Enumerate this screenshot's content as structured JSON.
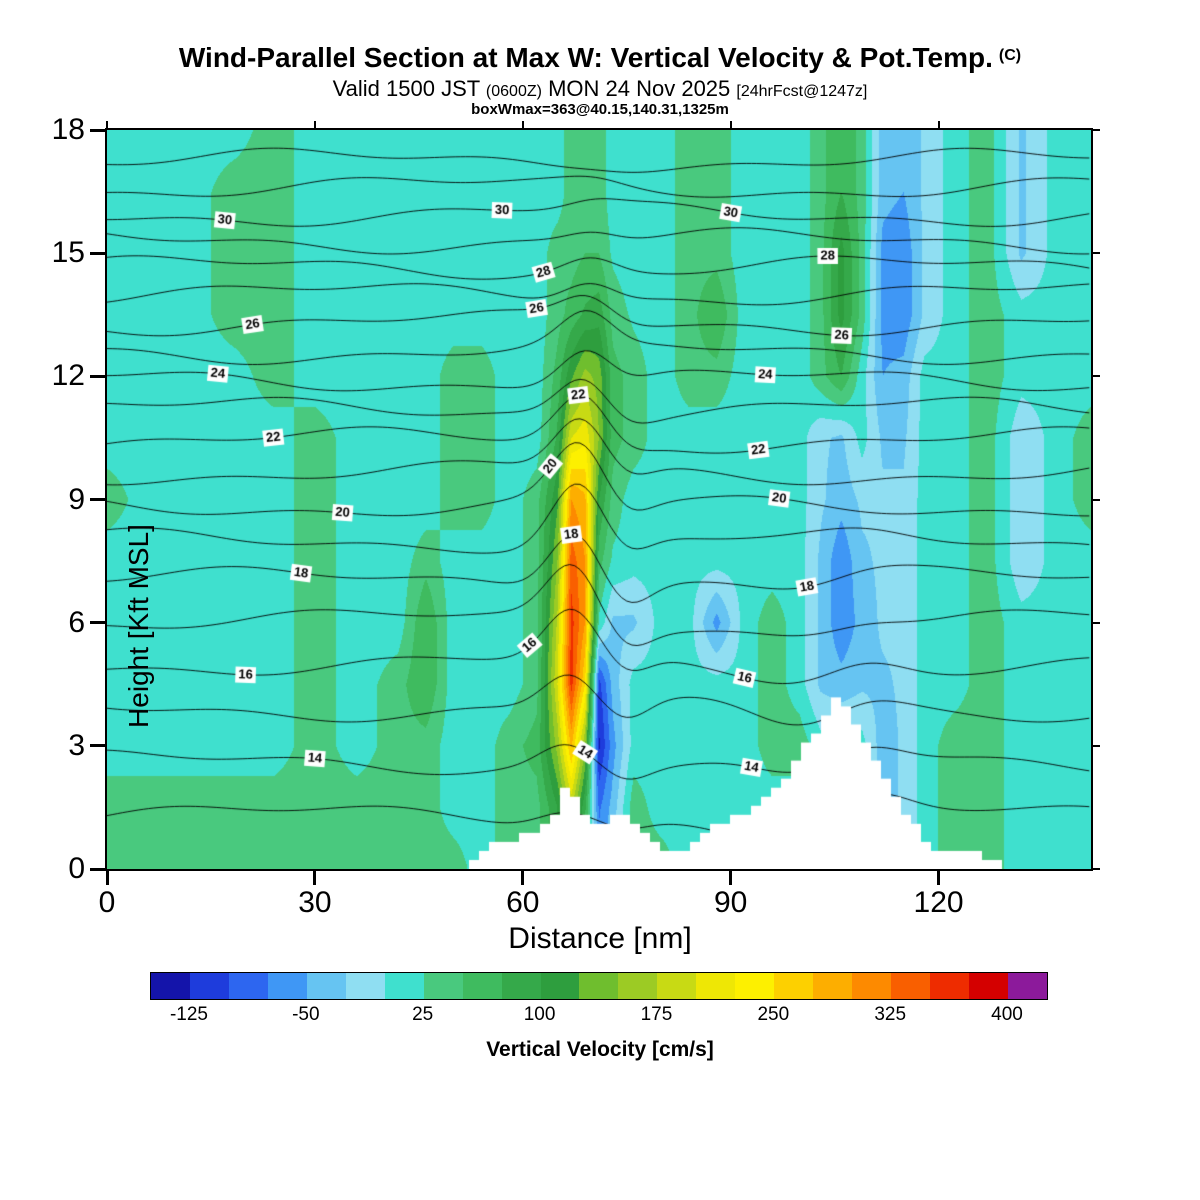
{
  "header": {
    "title_unit": "(C)",
    "valid": {
      "p1": "Valid 1500 JST",
      "p2": "(0600Z)",
      "p3": "MON 24 Nov 2025",
      "p4": "[24hrFcst@1247z]"
    },
    "max_line": "boxWmax=363@40.15,140.31,1325m"
  },
  "chart_data": {
    "type": "heatmap",
    "title": "Wind-Parallel Section at Max W: Vertical Velocity & Pot.Temp.",
    "subtitle": "Valid 1500 JST (0600Z) MON 24 Nov 2025 [24hrFcst@1247z]",
    "annotation": "boxWmax=363@40.15,140.31,1325m",
    "xlabel": "Distance [nm]",
    "ylabel": "Height [Kft MSL]",
    "xlim": [
      0,
      142
    ],
    "ylim": [
      0,
      18
    ],
    "x_ticks": [
      0,
      30,
      60,
      90,
      120
    ],
    "y_ticks": [
      0,
      3,
      6,
      9,
      12,
      15,
      18
    ],
    "field_name": "Vertical Velocity",
    "field_units": "cm/s",
    "max_value_cms": 363,
    "colorbar": {
      "title": "Vertical Velocity [cm/s]",
      "ticks": [
        -125,
        -50,
        25,
        100,
        175,
        250,
        325,
        400
      ],
      "vmin": -150,
      "vmax": 425,
      "bin_size": 25,
      "colors": [
        "#1414aa",
        "#1e3cdc",
        "#2d66f0",
        "#3f97f5",
        "#66c4f2",
        "#8fdef2",
        "#3fe0ce",
        "#49c97e",
        "#3fbb5f",
        "#35a94a",
        "#2e9e3e",
        "#6fbe2e",
        "#9ccb24",
        "#c8da14",
        "#eee705",
        "#fdf000",
        "#fdd000",
        "#fdae00",
        "#fd8a00",
        "#f95f00",
        "#ee2c00",
        "#d40000",
        "#8c1a9b"
      ]
    },
    "x_nm": [
      0,
      6,
      12,
      18,
      24,
      30,
      36,
      42,
      46,
      50,
      54,
      58,
      62,
      65,
      67,
      69,
      71,
      73,
      76,
      80,
      84,
      88,
      92,
      96,
      100,
      103,
      106,
      109,
      112,
      115,
      118,
      122,
      127,
      132,
      137,
      142
    ],
    "z_kft": [
      0,
      1.5,
      3,
      4.5,
      6,
      7.5,
      9,
      10.5,
      12,
      13.5,
      15,
      16.5,
      18
    ],
    "w_cms": [
      [
        40,
        40,
        40,
        40,
        40,
        40,
        40,
        40,
        40,
        40,
        10,
        40,
        40,
        100,
        150,
        60,
        -60,
        -20,
        40,
        40,
        10,
        10,
        10,
        10,
        10,
        10,
        10,
        10,
        -30,
        -20,
        10,
        40,
        40,
        10,
        10,
        10
      ],
      [
        40,
        40,
        40,
        40,
        40,
        40,
        40,
        40,
        40,
        10,
        10,
        40,
        40,
        100,
        180,
        80,
        -80,
        -40,
        40,
        10,
        10,
        10,
        10,
        10,
        10,
        10,
        10,
        10,
        -40,
        -20,
        10,
        40,
        40,
        10,
        10,
        10
      ],
      [
        10,
        10,
        10,
        10,
        10,
        40,
        10,
        40,
        40,
        10,
        10,
        40,
        60,
        160,
        280,
        150,
        -130,
        -60,
        10,
        10,
        10,
        10,
        10,
        40,
        40,
        10,
        10,
        10,
        -40,
        -20,
        10,
        40,
        40,
        10,
        10,
        10
      ],
      [
        10,
        10,
        10,
        10,
        10,
        40,
        10,
        40,
        75,
        10,
        10,
        10,
        40,
        200,
        360,
        250,
        -110,
        -40,
        10,
        10,
        10,
        10,
        10,
        40,
        10,
        -30,
        -40,
        -30,
        -30,
        -20,
        10,
        10,
        40,
        10,
        10,
        10
      ],
      [
        10,
        10,
        10,
        10,
        10,
        40,
        10,
        10,
        75,
        10,
        10,
        10,
        40,
        180,
        360,
        300,
        20,
        -30,
        -30,
        10,
        10,
        -60,
        10,
        40,
        10,
        -30,
        -70,
        -40,
        -20,
        -20,
        10,
        10,
        40,
        10,
        10,
        10
      ],
      [
        10,
        10,
        10,
        10,
        10,
        40,
        10,
        10,
        40,
        10,
        10,
        10,
        40,
        150,
        340,
        300,
        60,
        20,
        10,
        10,
        10,
        10,
        10,
        10,
        10,
        -30,
        -70,
        -30,
        -20,
        -20,
        10,
        10,
        40,
        -20,
        10,
        10
      ],
      [
        40,
        10,
        10,
        10,
        10,
        40,
        10,
        10,
        10,
        40,
        40,
        10,
        40,
        120,
        300,
        280,
        100,
        40,
        10,
        10,
        10,
        10,
        10,
        10,
        10,
        -20,
        -40,
        -20,
        -20,
        -20,
        10,
        10,
        40,
        -20,
        10,
        40
      ],
      [
        10,
        10,
        10,
        10,
        10,
        40,
        10,
        10,
        10,
        40,
        40,
        10,
        10,
        80,
        200,
        220,
        150,
        60,
        40,
        10,
        10,
        10,
        10,
        10,
        10,
        -20,
        -30,
        10,
        -30,
        -30,
        10,
        10,
        40,
        -20,
        10,
        40
      ],
      [
        10,
        10,
        10,
        10,
        40,
        10,
        10,
        10,
        10,
        40,
        40,
        10,
        10,
        60,
        120,
        160,
        140,
        60,
        40,
        10,
        40,
        40,
        10,
        10,
        10,
        40,
        75,
        10,
        -50,
        -40,
        10,
        10,
        40,
        10,
        10,
        10
      ],
      [
        10,
        10,
        10,
        40,
        40,
        10,
        10,
        10,
        10,
        10,
        10,
        10,
        10,
        40,
        60,
        80,
        90,
        40,
        20,
        10,
        40,
        75,
        10,
        10,
        10,
        40,
        110,
        40,
        -60,
        -70,
        -20,
        10,
        40,
        10,
        10,
        10
      ],
      [
        10,
        10,
        10,
        40,
        40,
        10,
        10,
        10,
        10,
        10,
        10,
        10,
        10,
        40,
        40,
        50,
        50,
        20,
        10,
        10,
        40,
        40,
        10,
        10,
        10,
        40,
        110,
        40,
        -60,
        -70,
        -20,
        10,
        40,
        -30,
        10,
        10
      ],
      [
        10,
        10,
        10,
        40,
        40,
        10,
        10,
        10,
        10,
        10,
        10,
        10,
        10,
        10,
        40,
        40,
        40,
        10,
        10,
        10,
        40,
        40,
        10,
        10,
        10,
        40,
        75,
        40,
        -40,
        -50,
        -20,
        10,
        40,
        -30,
        10,
        10
      ],
      [
        10,
        10,
        10,
        10,
        40,
        10,
        10,
        10,
        10,
        10,
        10,
        10,
        10,
        10,
        40,
        40,
        40,
        10,
        10,
        10,
        40,
        40,
        10,
        10,
        10,
        40,
        75,
        40,
        -40,
        -50,
        -20,
        10,
        40,
        -30,
        10,
        10
      ]
    ],
    "terrain": {
      "x_nm": [
        0,
        52,
        54,
        56,
        58,
        60,
        62,
        64,
        65,
        66,
        67,
        68,
        70,
        72,
        74,
        76,
        78,
        80,
        82,
        84,
        86,
        88,
        90,
        92,
        94,
        96,
        98,
        100,
        102,
        104,
        105,
        107,
        108,
        110,
        112,
        114,
        116,
        118,
        120,
        122,
        124,
        125,
        126,
        128,
        130,
        142
      ],
      "h_kft": [
        0,
        0,
        0.4,
        0.8,
        0.6,
        0.9,
        1.0,
        1.2,
        1.6,
        2.0,
        2.0,
        1.3,
        1.1,
        1.2,
        1.4,
        1.1,
        0.9,
        0.5,
        0.4,
        0.6,
        0.9,
        1.1,
        1.2,
        1.3,
        1.5,
        1.9,
        2.3,
        2.8,
        3.3,
        3.9,
        4.1,
        4.0,
        3.6,
        3.0,
        2.4,
        1.8,
        1.2,
        0.8,
        0.4,
        0.3,
        0.5,
        0.6,
        0.4,
        0.2,
        0,
        0
      ]
    },
    "theta": {
      "units": "C",
      "interval": 1,
      "min": 13,
      "max": 32,
      "left_heights_kft": [
        1.3,
        2.6,
        3.9,
        5.0,
        6.05,
        7.05,
        8.0,
        8.85,
        9.65,
        10.45,
        11.2,
        11.9,
        12.6,
        13.3,
        14.0,
        14.65,
        15.3,
        15.95,
        16.6,
        17.25
      ],
      "labels": [
        {
          "v": 14,
          "x": [
            30,
            69,
            93
          ]
        },
        {
          "v": 16,
          "x": [
            20,
            61,
            92
          ]
        },
        {
          "v": 18,
          "x": [
            28,
            67,
            101
          ]
        },
        {
          "v": 20,
          "x": [
            34,
            64,
            97
          ]
        },
        {
          "v": 22,
          "x": [
            24,
            68,
            94
          ]
        },
        {
          "v": 24,
          "x": [
            16,
            95
          ]
        },
        {
          "v": 26,
          "x": [
            21,
            62,
            106
          ]
        },
        {
          "v": 28,
          "x": [
            63,
            104
          ]
        },
        {
          "v": 30,
          "x": [
            17,
            57,
            90
          ]
        }
      ]
    }
  }
}
